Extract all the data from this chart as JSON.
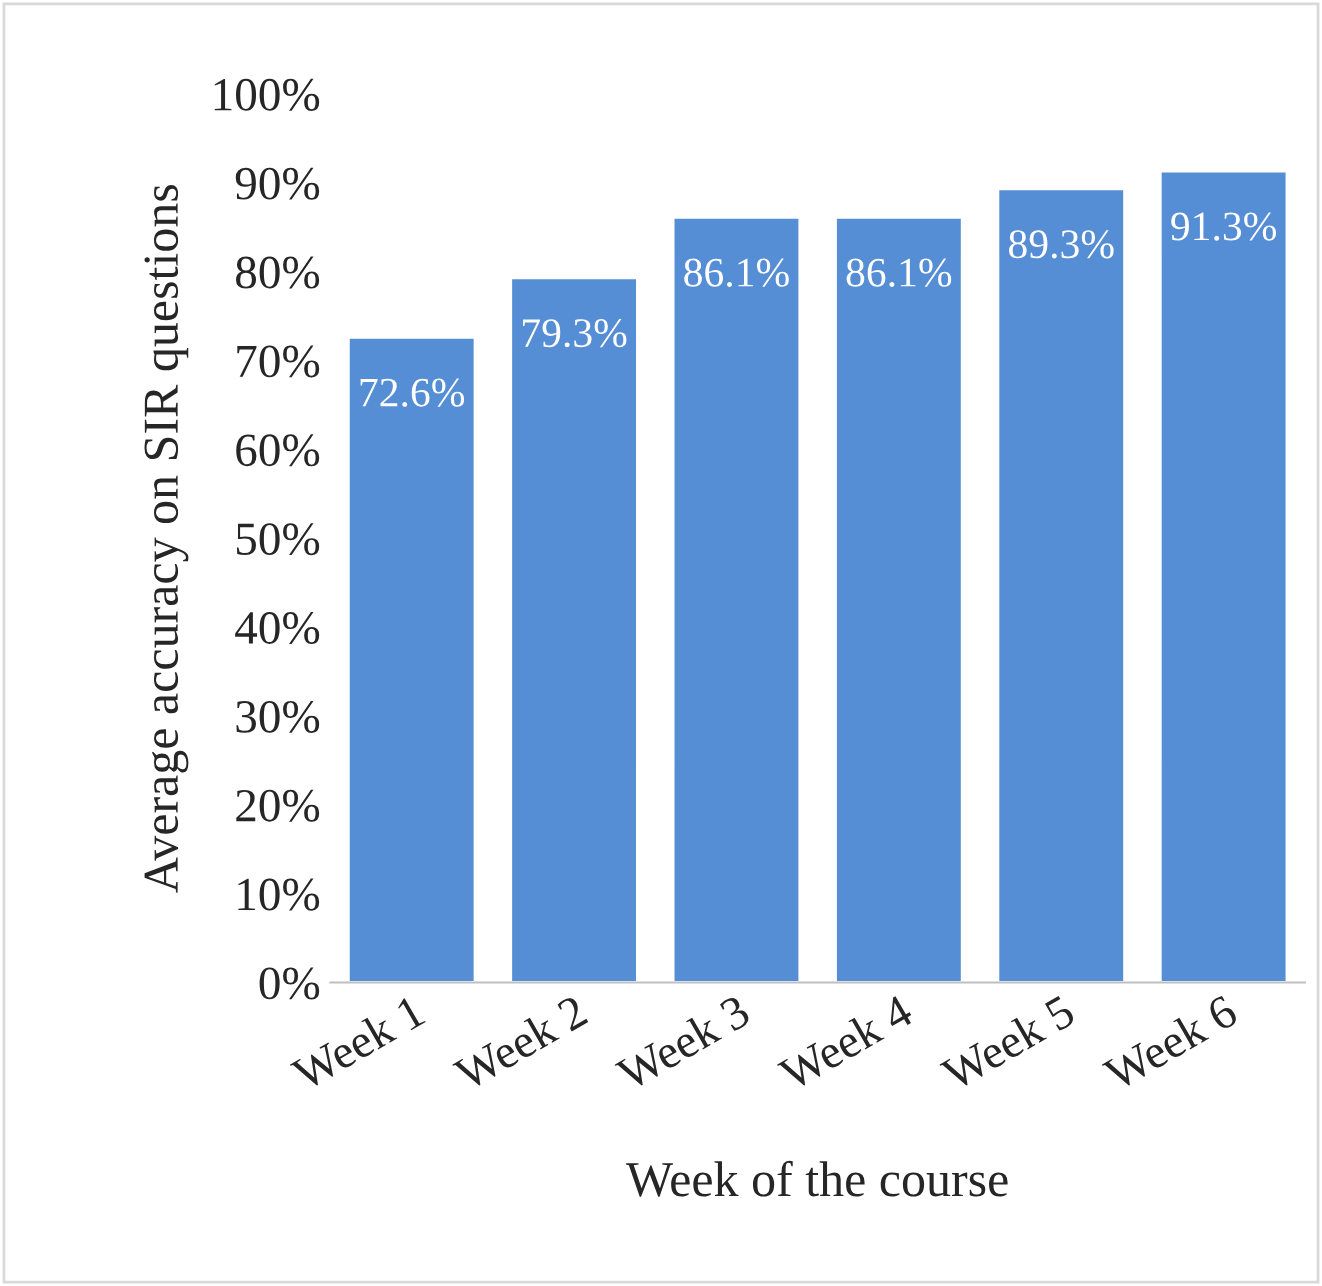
{
  "chart_data": {
    "type": "bar",
    "xlabel": "Week of the course",
    "ylabel": "Average accuracy on SIR questions",
    "categories": [
      "Week 1",
      "Week 2",
      "Week 3",
      "Week 4",
      "Week 5",
      "Week 6"
    ],
    "values": [
      72.6,
      79.3,
      86.1,
      86.1,
      89.3,
      91.3
    ],
    "value_labels": [
      "72.6%",
      "79.3%",
      "86.1%",
      "86.1%",
      "89.3%",
      "91.3%"
    ],
    "color": "#558ed5",
    "ylim": [
      0,
      100
    ],
    "yticks": [
      {
        "value": 0,
        "label": "0%"
      },
      {
        "value": 10,
        "label": "10%"
      },
      {
        "value": 20,
        "label": "20%"
      },
      {
        "value": 30,
        "label": "30%"
      },
      {
        "value": 40,
        "label": "40%"
      },
      {
        "value": 50,
        "label": "50%"
      },
      {
        "value": 60,
        "label": "60%"
      },
      {
        "value": 70,
        "label": "70%"
      },
      {
        "value": 80,
        "label": "80%"
      },
      {
        "value": 90,
        "label": "90%"
      },
      {
        "value": 100,
        "label": "100%"
      }
    ],
    "grid": false,
    "legend": false
  }
}
